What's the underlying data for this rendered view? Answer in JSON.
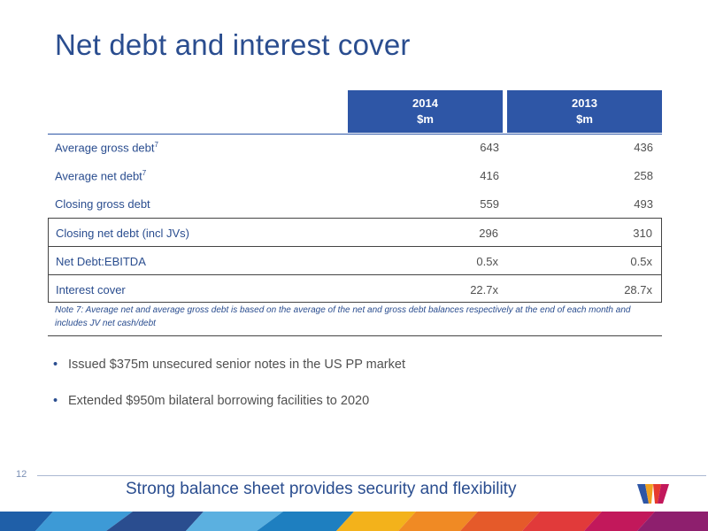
{
  "slide": {
    "title": "Net debt and interest cover",
    "page_number": "12",
    "tagline": "Strong balance sheet provides security and flexibility"
  },
  "table": {
    "headers": [
      {
        "year": "2014",
        "unit": "$m"
      },
      {
        "year": "2013",
        "unit": "$m"
      }
    ],
    "rows": [
      {
        "label": "Average gross debt",
        "sup": "7",
        "v2014": "643",
        "v2013": "436"
      },
      {
        "label": "Average net debt",
        "sup": "7",
        "v2014": "416",
        "v2013": "258"
      },
      {
        "label": "Closing gross debt",
        "sup": "",
        "v2014": "559",
        "v2013": "493"
      },
      {
        "label": "Closing net debt (incl JVs)",
        "sup": "",
        "v2014": "296",
        "v2013": "310"
      },
      {
        "label": "Net Debt:EBITDA",
        "sup": "",
        "v2014": "0.5x",
        "v2013": "0.5x"
      },
      {
        "label": "Interest cover",
        "sup": "",
        "v2014": "22.7x",
        "v2013": "28.7x"
      }
    ],
    "note": "Note 7: Average net and average gross debt is based on the average of the net and gross debt balances respectively at the end of each month and includes JV net cash/debt"
  },
  "bullets": [
    "Issued $375m unsecured senior notes in the US PP market",
    "Extended $950m bilateral borrowing facilities to 2020"
  ],
  "colors": {
    "title": "#2a4d8f",
    "header_bg": "#2e56a6",
    "body_text": "#505050"
  },
  "icons": {
    "bullet": "•"
  }
}
